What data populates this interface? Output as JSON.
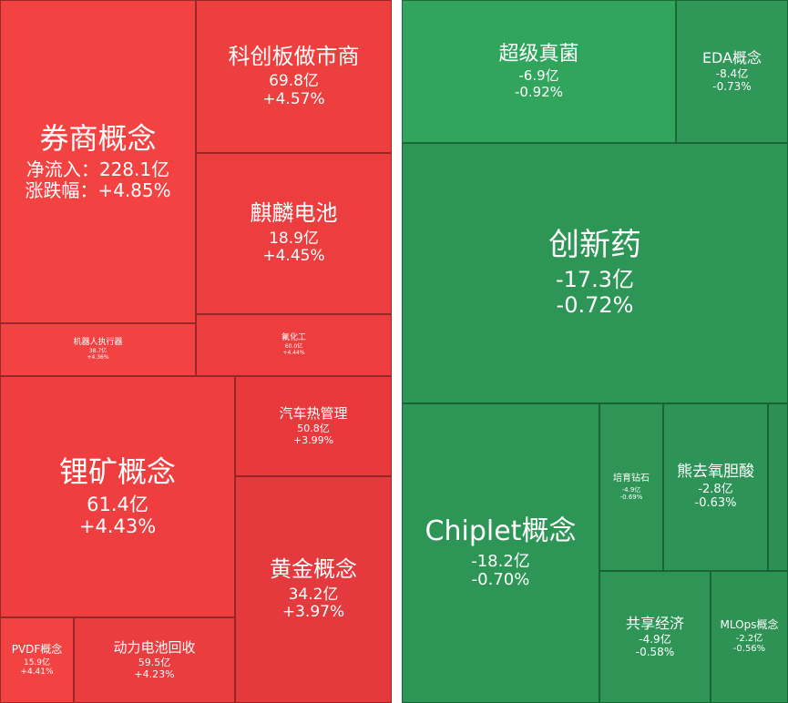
{
  "chart_data": {
    "type": "treemap",
    "colors": {
      "up": "#f0413f",
      "down": "#2e9a5a"
    },
    "groups": [
      {
        "trend": "up",
        "items": [
          {
            "name": "券商概念",
            "value_label": "净流入：228.1亿",
            "change_label": "涨跌幅：+4.85%",
            "net_inflow": 228.1,
            "change_pct": 4.85
          },
          {
            "name": "科创板做市商",
            "value_label": "69.8亿",
            "change_label": "+4.57%",
            "net_inflow": 69.8,
            "change_pct": 4.57
          },
          {
            "name": "麒麟电池",
            "value_label": "18.9亿",
            "change_label": "+4.45%",
            "net_inflow": 18.9,
            "change_pct": 4.45
          },
          {
            "name": "机器人执行器",
            "value_label": "38.7亿",
            "change_label": "+4.36%",
            "net_inflow": 38.7,
            "change_pct": 4.36
          },
          {
            "name": "氟化工",
            "value_label": "60.0亿",
            "change_label": "+4.44%",
            "net_inflow": 60.0,
            "change_pct": 4.44
          },
          {
            "name": "锂矿概念",
            "value_label": "61.4亿",
            "change_label": "+4.43%",
            "net_inflow": 61.4,
            "change_pct": 4.43
          },
          {
            "name": "汽车热管理",
            "value_label": "50.8亿",
            "change_label": "+3.99%",
            "net_inflow": 50.8,
            "change_pct": 3.99
          },
          {
            "name": "黄金概念",
            "value_label": "34.2亿",
            "change_label": "+3.97%",
            "net_inflow": 34.2,
            "change_pct": 3.97
          },
          {
            "name": "PVDF概念",
            "value_label": "15.9亿",
            "change_label": "+4.41%",
            "net_inflow": 15.9,
            "change_pct": 4.41
          },
          {
            "name": "动力电池回收",
            "value_label": "59.5亿",
            "change_label": "+4.23%",
            "net_inflow": 59.5,
            "change_pct": 4.23
          }
        ]
      },
      {
        "trend": "down",
        "items": [
          {
            "name": "超级真菌",
            "value_label": "-6.9亿",
            "change_label": "-0.92%",
            "net_inflow": -6.9,
            "change_pct": -0.92
          },
          {
            "name": "EDA概念",
            "value_label": "-8.4亿",
            "change_label": "-0.73%",
            "net_inflow": -8.4,
            "change_pct": -0.73
          },
          {
            "name": "创新药",
            "value_label": "-17.3亿",
            "change_label": "-0.72%",
            "net_inflow": -17.3,
            "change_pct": -0.72
          },
          {
            "name": "Chiplet概念",
            "value_label": "-18.2亿",
            "change_label": "-0.70%",
            "net_inflow": -18.2,
            "change_pct": -0.7
          },
          {
            "name": "培育钻石",
            "value_label": "-4.9亿",
            "change_label": "-0.69%",
            "net_inflow": -4.9,
            "change_pct": -0.69
          },
          {
            "name": "熊去氧胆酸",
            "value_label": "-2.8亿",
            "change_label": "-0.63%",
            "net_inflow": -2.8,
            "change_pct": -0.63
          },
          {
            "name": "",
            "value_label": "",
            "change_label": ""
          },
          {
            "name": "共享经济",
            "value_label": "-4.9亿",
            "change_label": "-0.58%",
            "net_inflow": -4.9,
            "change_pct": -0.58
          },
          {
            "name": "MLOps概念",
            "value_label": "-2.2亿",
            "change_label": "-0.56%",
            "net_inflow": -2.2,
            "change_pct": -0.56
          }
        ]
      }
    ]
  }
}
